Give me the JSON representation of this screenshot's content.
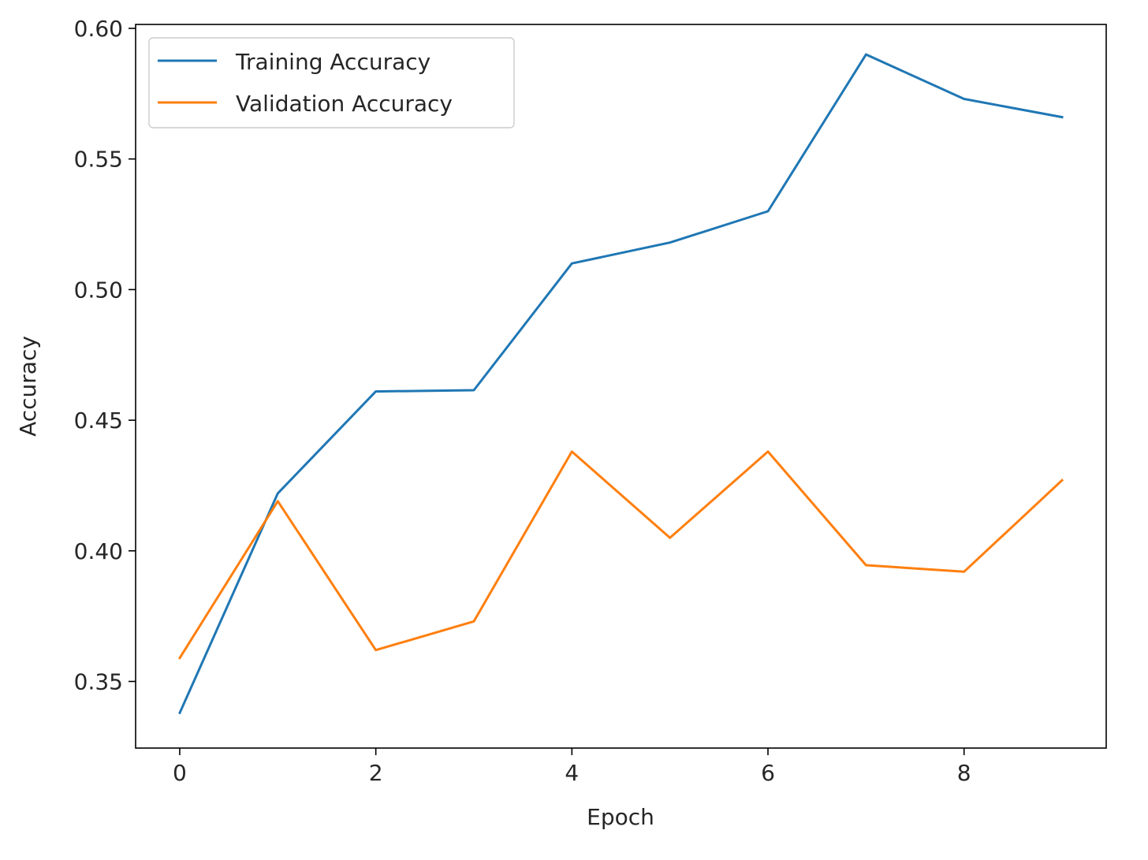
{
  "chart_data": {
    "type": "line",
    "title": "",
    "xlabel": "Epoch",
    "ylabel": "Accuracy",
    "x": [
      0,
      1,
      2,
      3,
      4,
      5,
      6,
      7,
      8,
      9
    ],
    "xlim": [
      -0.45,
      9.45
    ],
    "ylim": [
      0.3245,
      0.6015
    ],
    "xticks": [
      0,
      2,
      4,
      6,
      8
    ],
    "xtick_labels": [
      "0",
      "2",
      "4",
      "6",
      "8"
    ],
    "yticks": [
      0.35,
      0.4,
      0.45,
      0.5,
      0.55,
      0.6
    ],
    "ytick_labels": [
      "0.35",
      "0.40",
      "0.45",
      "0.50",
      "0.55",
      "0.60"
    ],
    "grid": false,
    "legend_position": "top-left",
    "series": [
      {
        "name": "Training Accuracy",
        "color": "#1f77b4",
        "values": [
          0.338,
          0.422,
          0.461,
          0.4615,
          0.51,
          0.518,
          0.53,
          0.59,
          0.573,
          0.566
        ]
      },
      {
        "name": "Validation Accuracy",
        "color": "#ff7f0e",
        "values": [
          0.359,
          0.419,
          0.362,
          0.373,
          0.438,
          0.405,
          0.438,
          0.3945,
          0.392,
          0.427
        ]
      }
    ]
  }
}
